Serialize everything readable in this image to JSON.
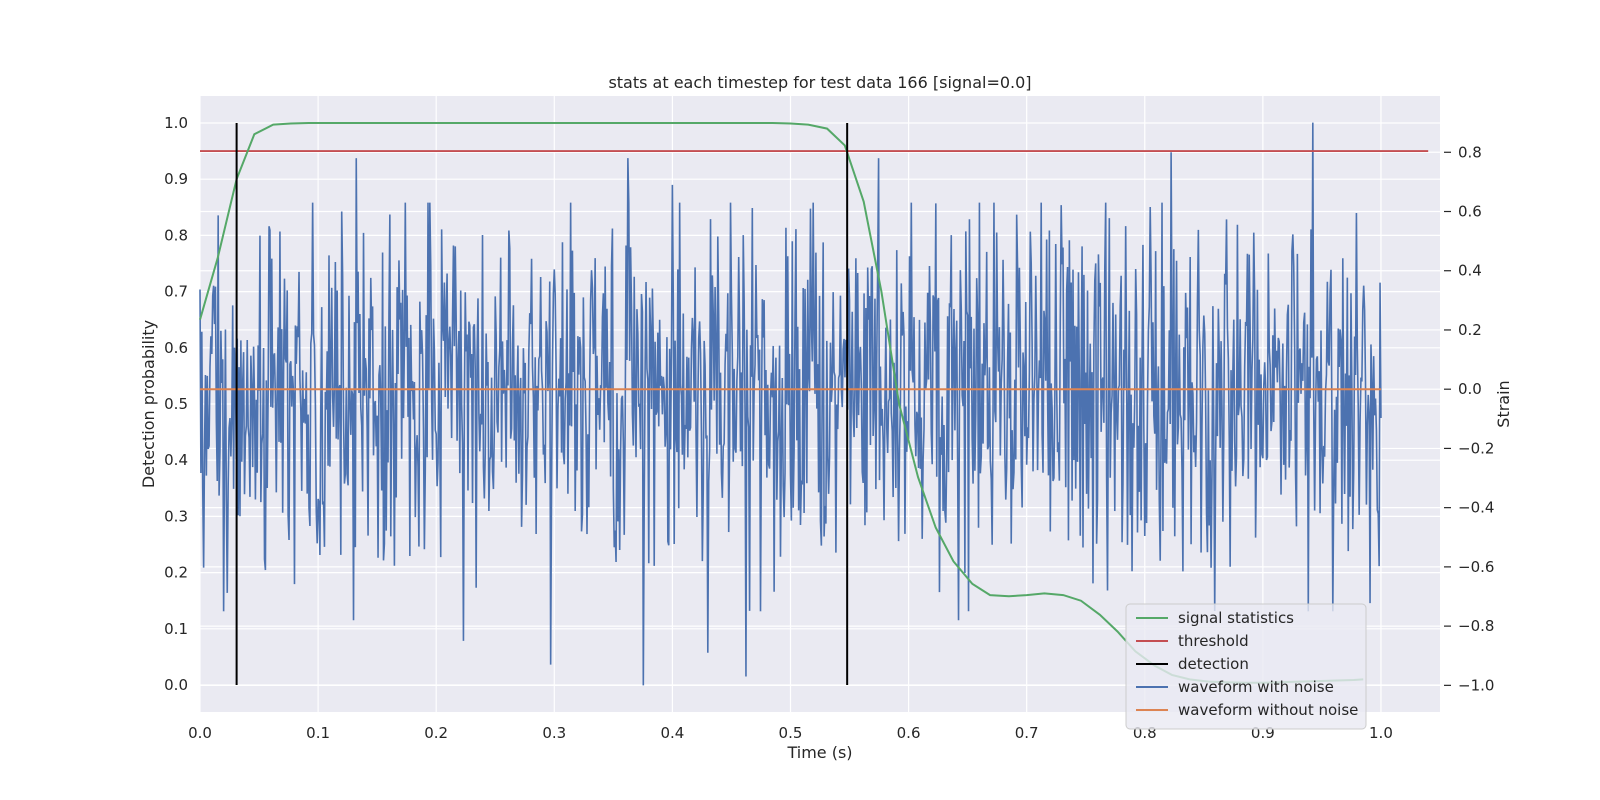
{
  "chart_data": {
    "type": "line",
    "title": "stats at each timestep for test data 166 [signal=0.0]",
    "xlabel": "Time (s)",
    "ylabel": "Detection probability",
    "y2label": "Strain",
    "xlim": [
      0.0,
      1.05
    ],
    "ylim": [
      -0.048,
      1.048
    ],
    "y2lim": [
      -1.09,
      0.99
    ],
    "x_ticks": [
      0.0,
      0.1,
      0.2,
      0.3,
      0.4,
      0.5,
      0.6,
      0.7,
      0.8,
      0.9,
      1.0
    ],
    "x_tick_labels": [
      "0.0",
      "0.1",
      "0.2",
      "0.3",
      "0.4",
      "0.5",
      "0.6",
      "0.7",
      "0.8",
      "0.9",
      "1.0"
    ],
    "y_ticks": [
      0.0,
      0.1,
      0.2,
      0.3,
      0.4,
      0.5,
      0.6,
      0.7,
      0.8,
      0.9,
      1.0
    ],
    "y_tick_labels": [
      "0.0",
      "0.1",
      "0.2",
      "0.3",
      "0.4",
      "0.5",
      "0.6",
      "0.7",
      "0.8",
      "0.9",
      "1.0"
    ],
    "y2_ticks": [
      -1.0,
      -0.8,
      -0.6,
      -0.4,
      -0.2,
      0.0,
      0.2,
      0.4,
      0.6,
      0.8
    ],
    "y2_tick_labels": [
      "−1.0",
      "−0.8",
      "−0.6",
      "−0.4",
      "−0.2",
      "0.0",
      "0.2",
      "0.4",
      "0.6",
      "0.8"
    ],
    "grid": true,
    "legend_position": "bottom-right",
    "legend": [
      {
        "label": "signal statistics",
        "color": "#55a868"
      },
      {
        "label": "threshold",
        "color": "#c44e52"
      },
      {
        "label": "detection",
        "color": "#000000"
      },
      {
        "label": "waveform with noise",
        "color": "#4c72b0"
      },
      {
        "label": "waveform without noise",
        "color": "#dd8452"
      }
    ],
    "colors": {
      "background": "#eaeaf2",
      "grid": "#ffffff",
      "signal_statistics": "#55a868",
      "threshold": "#c44e52",
      "detection": "#000000",
      "waveform_with_noise": "#4c72b0",
      "waveform_without_noise": "#dd8452"
    },
    "series": [
      {
        "name": "signal statistics",
        "axis": "left",
        "x": [
          0.0,
          0.015,
          0.031,
          0.046,
          0.062,
          0.077,
          0.092,
          0.108,
          0.2,
          0.3,
          0.4,
          0.45,
          0.485,
          0.5,
          0.515,
          0.531,
          0.546,
          0.562,
          0.577,
          0.592,
          0.608,
          0.623,
          0.638,
          0.654,
          0.669,
          0.685,
          0.7,
          0.715,
          0.731,
          0.746,
          0.762,
          0.777,
          0.792,
          0.808,
          0.823,
          0.838,
          0.854,
          0.869,
          0.885,
          0.9,
          0.915,
          0.931,
          0.946,
          0.962,
          0.977,
          0.985
        ],
        "values": [
          0.65,
          0.76,
          0.9,
          0.98,
          0.997,
          0.999,
          1.0,
          1.0,
          1.0,
          1.0,
          1.0,
          1.0,
          1.0,
          0.999,
          0.997,
          0.99,
          0.96,
          0.86,
          0.7,
          0.5,
          0.37,
          0.28,
          0.22,
          0.18,
          0.16,
          0.158,
          0.16,
          0.163,
          0.16,
          0.15,
          0.125,
          0.095,
          0.06,
          0.035,
          0.018,
          0.01,
          0.006,
          0.005,
          0.004,
          0.004,
          0.005,
          0.006,
          0.007,
          0.008,
          0.009,
          0.01
        ]
      },
      {
        "name": "threshold",
        "axis": "left",
        "x": [
          0.0,
          1.04
        ],
        "values": [
          0.95,
          0.95
        ]
      },
      {
        "name": "detection",
        "axis": "left",
        "segments": [
          {
            "x": 0.031,
            "y_from": 0.0,
            "y_to": 1.0
          },
          {
            "x": 0.548,
            "y_from": 0.0,
            "y_to": 1.0
          }
        ]
      },
      {
        "name": "waveform with noise",
        "axis": "right",
        "x_start": 0.0,
        "x_end": 1.0,
        "amplitude_range": [
          -1.0,
          0.9
        ],
        "peaks": [
          {
            "x": 0.12,
            "value": 0.6
          },
          {
            "x": 0.132,
            "value": 0.78
          },
          {
            "x": 0.13,
            "value": -0.78
          },
          {
            "x": 0.223,
            "value": -0.85
          },
          {
            "x": 0.297,
            "value": -0.93
          },
          {
            "x": 0.362,
            "value": 0.78
          },
          {
            "x": 0.375,
            "value": -1.0
          },
          {
            "x": 0.4,
            "value": 0.69
          },
          {
            "x": 0.43,
            "value": -0.89
          },
          {
            "x": 0.462,
            "value": -0.97
          },
          {
            "x": 0.575,
            "value": 0.78
          },
          {
            "x": 0.642,
            "value": -0.78
          },
          {
            "x": 0.822,
            "value": 0.8
          },
          {
            "x": 0.942,
            "value": 0.9
          },
          {
            "x": 0.999,
            "value": 0.36
          }
        ]
      },
      {
        "name": "waveform without noise",
        "axis": "right",
        "x": [
          0.0,
          1.0
        ],
        "values": [
          0.0,
          0.0
        ]
      }
    ]
  }
}
